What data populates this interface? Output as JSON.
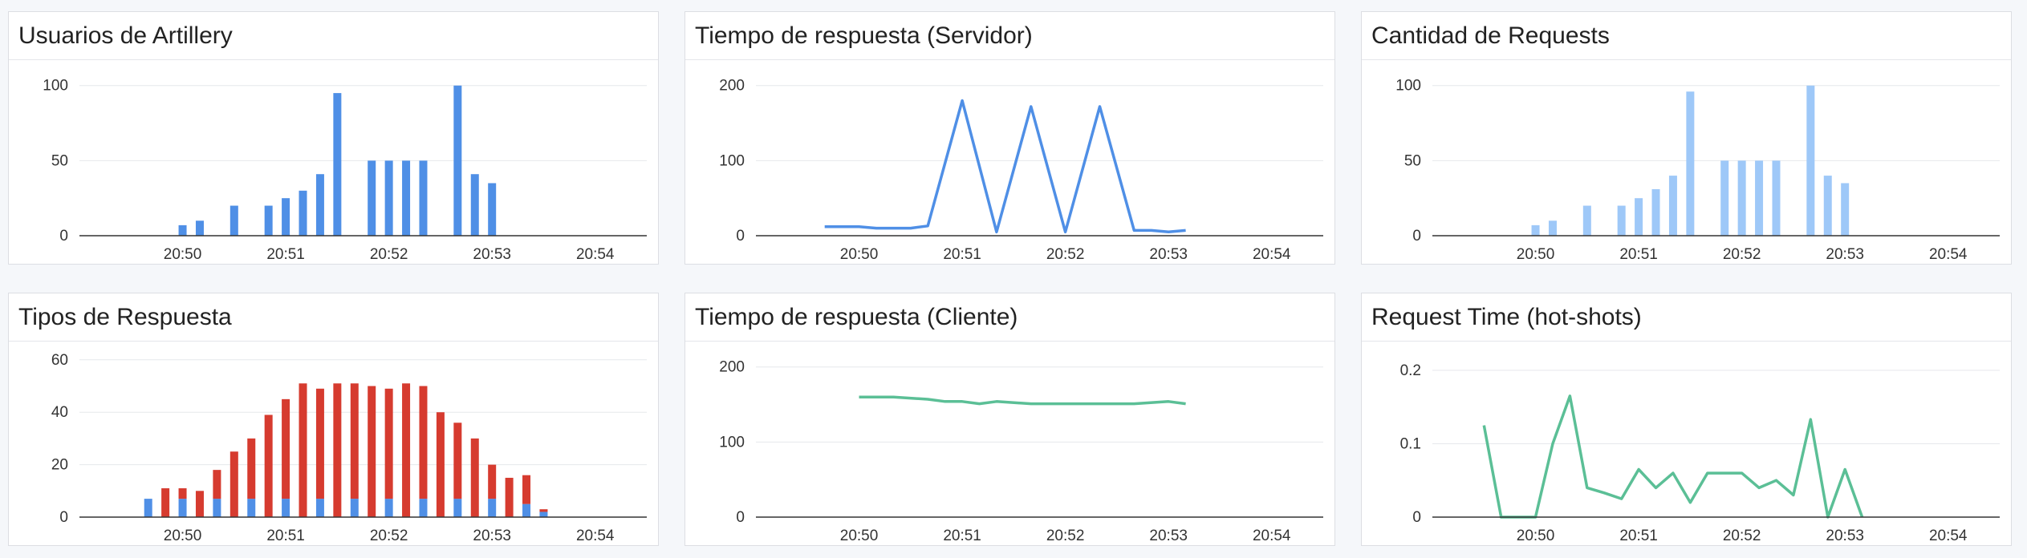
{
  "colors": {
    "blue": "#4f8fe6",
    "light_blue": "#9ec8f8",
    "red": "#d63b2f",
    "green": "#5bbf96"
  },
  "panels": [
    {
      "title": "Usuarios de Artillery"
    },
    {
      "title": "Tiempo de respuesta (Servidor)"
    },
    {
      "title": "Cantidad de Requests"
    },
    {
      "title": "Tipos de Respuesta"
    },
    {
      "title": "Tiempo de respuesta (Cliente)"
    },
    {
      "title": "Request Time (hot-shots)"
    }
  ],
  "chart_data": [
    {
      "type": "bar",
      "title": "Usuarios de Artillery",
      "x_ticks": [
        "20:50",
        "20:51",
        "20:52",
        "20:53",
        "20:54"
      ],
      "y_ticks": [
        "0",
        "50",
        "100"
      ],
      "ylim": [
        0,
        110
      ],
      "color": "#4f8fe6",
      "points": [
        {
          "t": "20:50:00",
          "y": 7
        },
        {
          "t": "20:50:10",
          "y": 10
        },
        {
          "t": "20:50:30",
          "y": 20
        },
        {
          "t": "20:50:50",
          "y": 20
        },
        {
          "t": "20:51:00",
          "y": 25
        },
        {
          "t": "20:51:10",
          "y": 30
        },
        {
          "t": "20:51:20",
          "y": 41
        },
        {
          "t": "20:51:30",
          "y": 95
        },
        {
          "t": "20:51:50",
          "y": 50
        },
        {
          "t": "20:52:00",
          "y": 50
        },
        {
          "t": "20:52:10",
          "y": 50
        },
        {
          "t": "20:52:20",
          "y": 50
        },
        {
          "t": "20:52:40",
          "y": 100
        },
        {
          "t": "20:52:50",
          "y": 41
        },
        {
          "t": "20:53:00",
          "y": 35
        }
      ]
    },
    {
      "type": "line",
      "title": "Tiempo de respuesta (Servidor)",
      "x_ticks": [
        "20:50",
        "20:51",
        "20:52",
        "20:53",
        "20:54"
      ],
      "y_ticks": [
        "0",
        "100",
        "200"
      ],
      "ylim": [
        0,
        220
      ],
      "color": "#4f8fe6",
      "points": [
        {
          "t": "20:49:40",
          "y": 12
        },
        {
          "t": "20:50:00",
          "y": 12
        },
        {
          "t": "20:50:10",
          "y": 10
        },
        {
          "t": "20:50:30",
          "y": 10
        },
        {
          "t": "20:50:40",
          "y": 13
        },
        {
          "t": "20:51:00",
          "y": 180
        },
        {
          "t": "20:51:20",
          "y": 5
        },
        {
          "t": "20:51:40",
          "y": 172
        },
        {
          "t": "20:52:00",
          "y": 5
        },
        {
          "t": "20:52:20",
          "y": 172
        },
        {
          "t": "20:52:40",
          "y": 7
        },
        {
          "t": "20:52:50",
          "y": 7
        },
        {
          "t": "20:53:00",
          "y": 5
        },
        {
          "t": "20:53:10",
          "y": 7
        }
      ]
    },
    {
      "type": "bar",
      "title": "Cantidad de Requests",
      "x_ticks": [
        "20:50",
        "20:51",
        "20:52",
        "20:53",
        "20:54"
      ],
      "y_ticks": [
        "0",
        "50",
        "100"
      ],
      "ylim": [
        0,
        110
      ],
      "color": "#9ec8f8",
      "points": [
        {
          "t": "20:50:00",
          "y": 7
        },
        {
          "t": "20:50:10",
          "y": 10
        },
        {
          "t": "20:50:30",
          "y": 20
        },
        {
          "t": "20:50:50",
          "y": 20
        },
        {
          "t": "20:51:00",
          "y": 25
        },
        {
          "t": "20:51:10",
          "y": 31
        },
        {
          "t": "20:51:20",
          "y": 40
        },
        {
          "t": "20:51:30",
          "y": 96
        },
        {
          "t": "20:51:50",
          "y": 50
        },
        {
          "t": "20:52:00",
          "y": 50
        },
        {
          "t": "20:52:10",
          "y": 50
        },
        {
          "t": "20:52:20",
          "y": 50
        },
        {
          "t": "20:52:40",
          "y": 100
        },
        {
          "t": "20:52:50",
          "y": 40
        },
        {
          "t": "20:53:00",
          "y": 35
        }
      ]
    },
    {
      "type": "bar",
      "title": "Tipos de Respuesta",
      "stacked": true,
      "x_ticks": [
        "20:50",
        "20:51",
        "20:52",
        "20:53",
        "20:54"
      ],
      "y_ticks": [
        "0",
        "20",
        "40",
        "60"
      ],
      "ylim": [
        0,
        63
      ],
      "series": [
        {
          "color": "#4f8fe6",
          "values": [
            7,
            0,
            7,
            0,
            7,
            0,
            7,
            0,
            7,
            0,
            7,
            0,
            7,
            0,
            7,
            0,
            7,
            0,
            7,
            0,
            7,
            0,
            5,
            2
          ]
        },
        {
          "color": "#d63b2f",
          "values": [
            0,
            11,
            4,
            10,
            11,
            25,
            23,
            39,
            38,
            51,
            42,
            51,
            44,
            50,
            42,
            51,
            43,
            40,
            29,
            30,
            13,
            15,
            11,
            1
          ]
        }
      ],
      "times": [
        "20:49:40",
        "20:49:50",
        "20:50:00",
        "20:50:10",
        "20:50:20",
        "20:50:30",
        "20:50:40",
        "20:50:50",
        "20:51:00",
        "20:51:10",
        "20:51:20",
        "20:51:30",
        "20:51:40",
        "20:51:50",
        "20:52:00",
        "20:52:10",
        "20:52:20",
        "20:52:30",
        "20:52:40",
        "20:52:50",
        "20:53:00",
        "20:53:10",
        "20:53:20",
        "20:53:30"
      ]
    },
    {
      "type": "line",
      "title": "Tiempo de respuesta (Cliente)",
      "x_ticks": [
        "20:50",
        "20:51",
        "20:52",
        "20:53",
        "20:54"
      ],
      "y_ticks": [
        "0",
        "100",
        "200"
      ],
      "ylim": [
        0,
        220
      ],
      "color": "#5bbf96",
      "points": [
        {
          "t": "20:50:00",
          "y": 160
        },
        {
          "t": "20:50:20",
          "y": 160
        },
        {
          "t": "20:50:40",
          "y": 157
        },
        {
          "t": "20:50:50",
          "y": 154
        },
        {
          "t": "20:51:00",
          "y": 154
        },
        {
          "t": "20:51:10",
          "y": 151
        },
        {
          "t": "20:51:20",
          "y": 154
        },
        {
          "t": "20:51:40",
          "y": 151
        },
        {
          "t": "20:52:00",
          "y": 151
        },
        {
          "t": "20:52:20",
          "y": 151
        },
        {
          "t": "20:52:40",
          "y": 151
        },
        {
          "t": "20:53:00",
          "y": 154
        },
        {
          "t": "20:53:10",
          "y": 151
        }
      ]
    },
    {
      "type": "line",
      "title": "Request Time (hot-shots)",
      "x_ticks": [
        "20:50",
        "20:51",
        "20:52",
        "20:53",
        "20:54"
      ],
      "y_ticks": [
        "0",
        "0.1",
        "0.2"
      ],
      "ylim": [
        0,
        0.225
      ],
      "color": "#5bbf96",
      "points": [
        {
          "t": "20:49:30",
          "y": 0.125
        },
        {
          "t": "20:49:40",
          "y": 0
        },
        {
          "t": "20:50:00",
          "y": 0
        },
        {
          "t": "20:50:10",
          "y": 0.1
        },
        {
          "t": "20:50:20",
          "y": 0.165
        },
        {
          "t": "20:50:30",
          "y": 0.04
        },
        {
          "t": "20:50:40",
          "y": 0.033
        },
        {
          "t": "20:50:50",
          "y": 0.025
        },
        {
          "t": "20:51:00",
          "y": 0.065
        },
        {
          "t": "20:51:10",
          "y": 0.04
        },
        {
          "t": "20:51:20",
          "y": 0.06
        },
        {
          "t": "20:51:30",
          "y": 0.02
        },
        {
          "t": "20:51:40",
          "y": 0.06
        },
        {
          "t": "20:52:00",
          "y": 0.06
        },
        {
          "t": "20:52:10",
          "y": 0.04
        },
        {
          "t": "20:52:20",
          "y": 0.05
        },
        {
          "t": "20:52:30",
          "y": 0.03
        },
        {
          "t": "20:52:40",
          "y": 0.133
        },
        {
          "t": "20:52:50",
          "y": 0
        },
        {
          "t": "20:53:00",
          "y": 0.065
        },
        {
          "t": "20:53:10",
          "y": 0
        }
      ]
    }
  ]
}
